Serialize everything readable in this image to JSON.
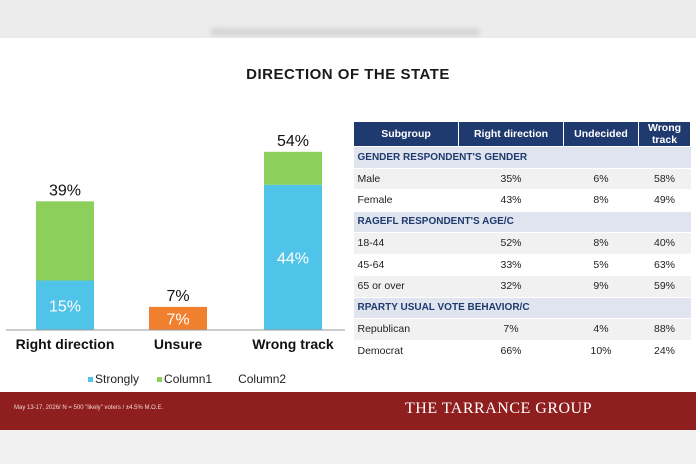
{
  "title": "DIRECTION OF THE STATE",
  "chart_data": {
    "type": "bar",
    "stacked": true,
    "categories": [
      "Right direction",
      "Unsure",
      "Wrong track"
    ],
    "series": [
      {
        "name": "Strongly",
        "values": [
          15,
          7,
          44
        ],
        "color": "#4fc3e8",
        "labels": [
          "15%",
          "7%",
          "44%"
        ]
      },
      {
        "name": "Column1",
        "values": [
          24,
          0,
          10
        ],
        "color": "#8ccf5a",
        "labels": [
          "",
          "",
          ""
        ]
      }
    ],
    "totals": [
      39,
      7,
      54
    ],
    "total_labels": [
      "39%",
      "7%",
      "54%"
    ],
    "unsure_color": "#f07f2e",
    "legend": [
      "Strongly",
      "Column1",
      "Column2"
    ],
    "legend_position": "bottom",
    "grid": false
  },
  "table": {
    "headers": [
      "Subgroup",
      "Right direction",
      "Undecided",
      "Wrong track"
    ],
    "groups": [
      {
        "label": "GENDER RESPONDENT'S GENDER",
        "rows": [
          [
            "Male",
            "35%",
            "6%",
            "58%"
          ],
          [
            "Female",
            "43%",
            "8%",
            "49%"
          ]
        ]
      },
      {
        "label": "RAGEFL RESPONDENT'S AGE/C",
        "rows": [
          [
            "18-44",
            "52%",
            "8%",
            "40%"
          ],
          [
            "45-64",
            "33%",
            "5%",
            "63%"
          ],
          [
            "65 or over",
            "32%",
            "9%",
            "59%"
          ]
        ]
      },
      {
        "label": "RPARTY USUAL VOTE BEHAVIOR/C",
        "rows": [
          [
            "Republican",
            "7%",
            "4%",
            "88%"
          ],
          [
            "Democrat",
            "66%",
            "10%",
            "24%"
          ]
        ]
      }
    ]
  },
  "footer": {
    "note": "May 13-17, 2026/ N = 500 \"likely\" voters / ±4.5% M.O.E.",
    "brand": "THE TARRANCE GROUP"
  }
}
